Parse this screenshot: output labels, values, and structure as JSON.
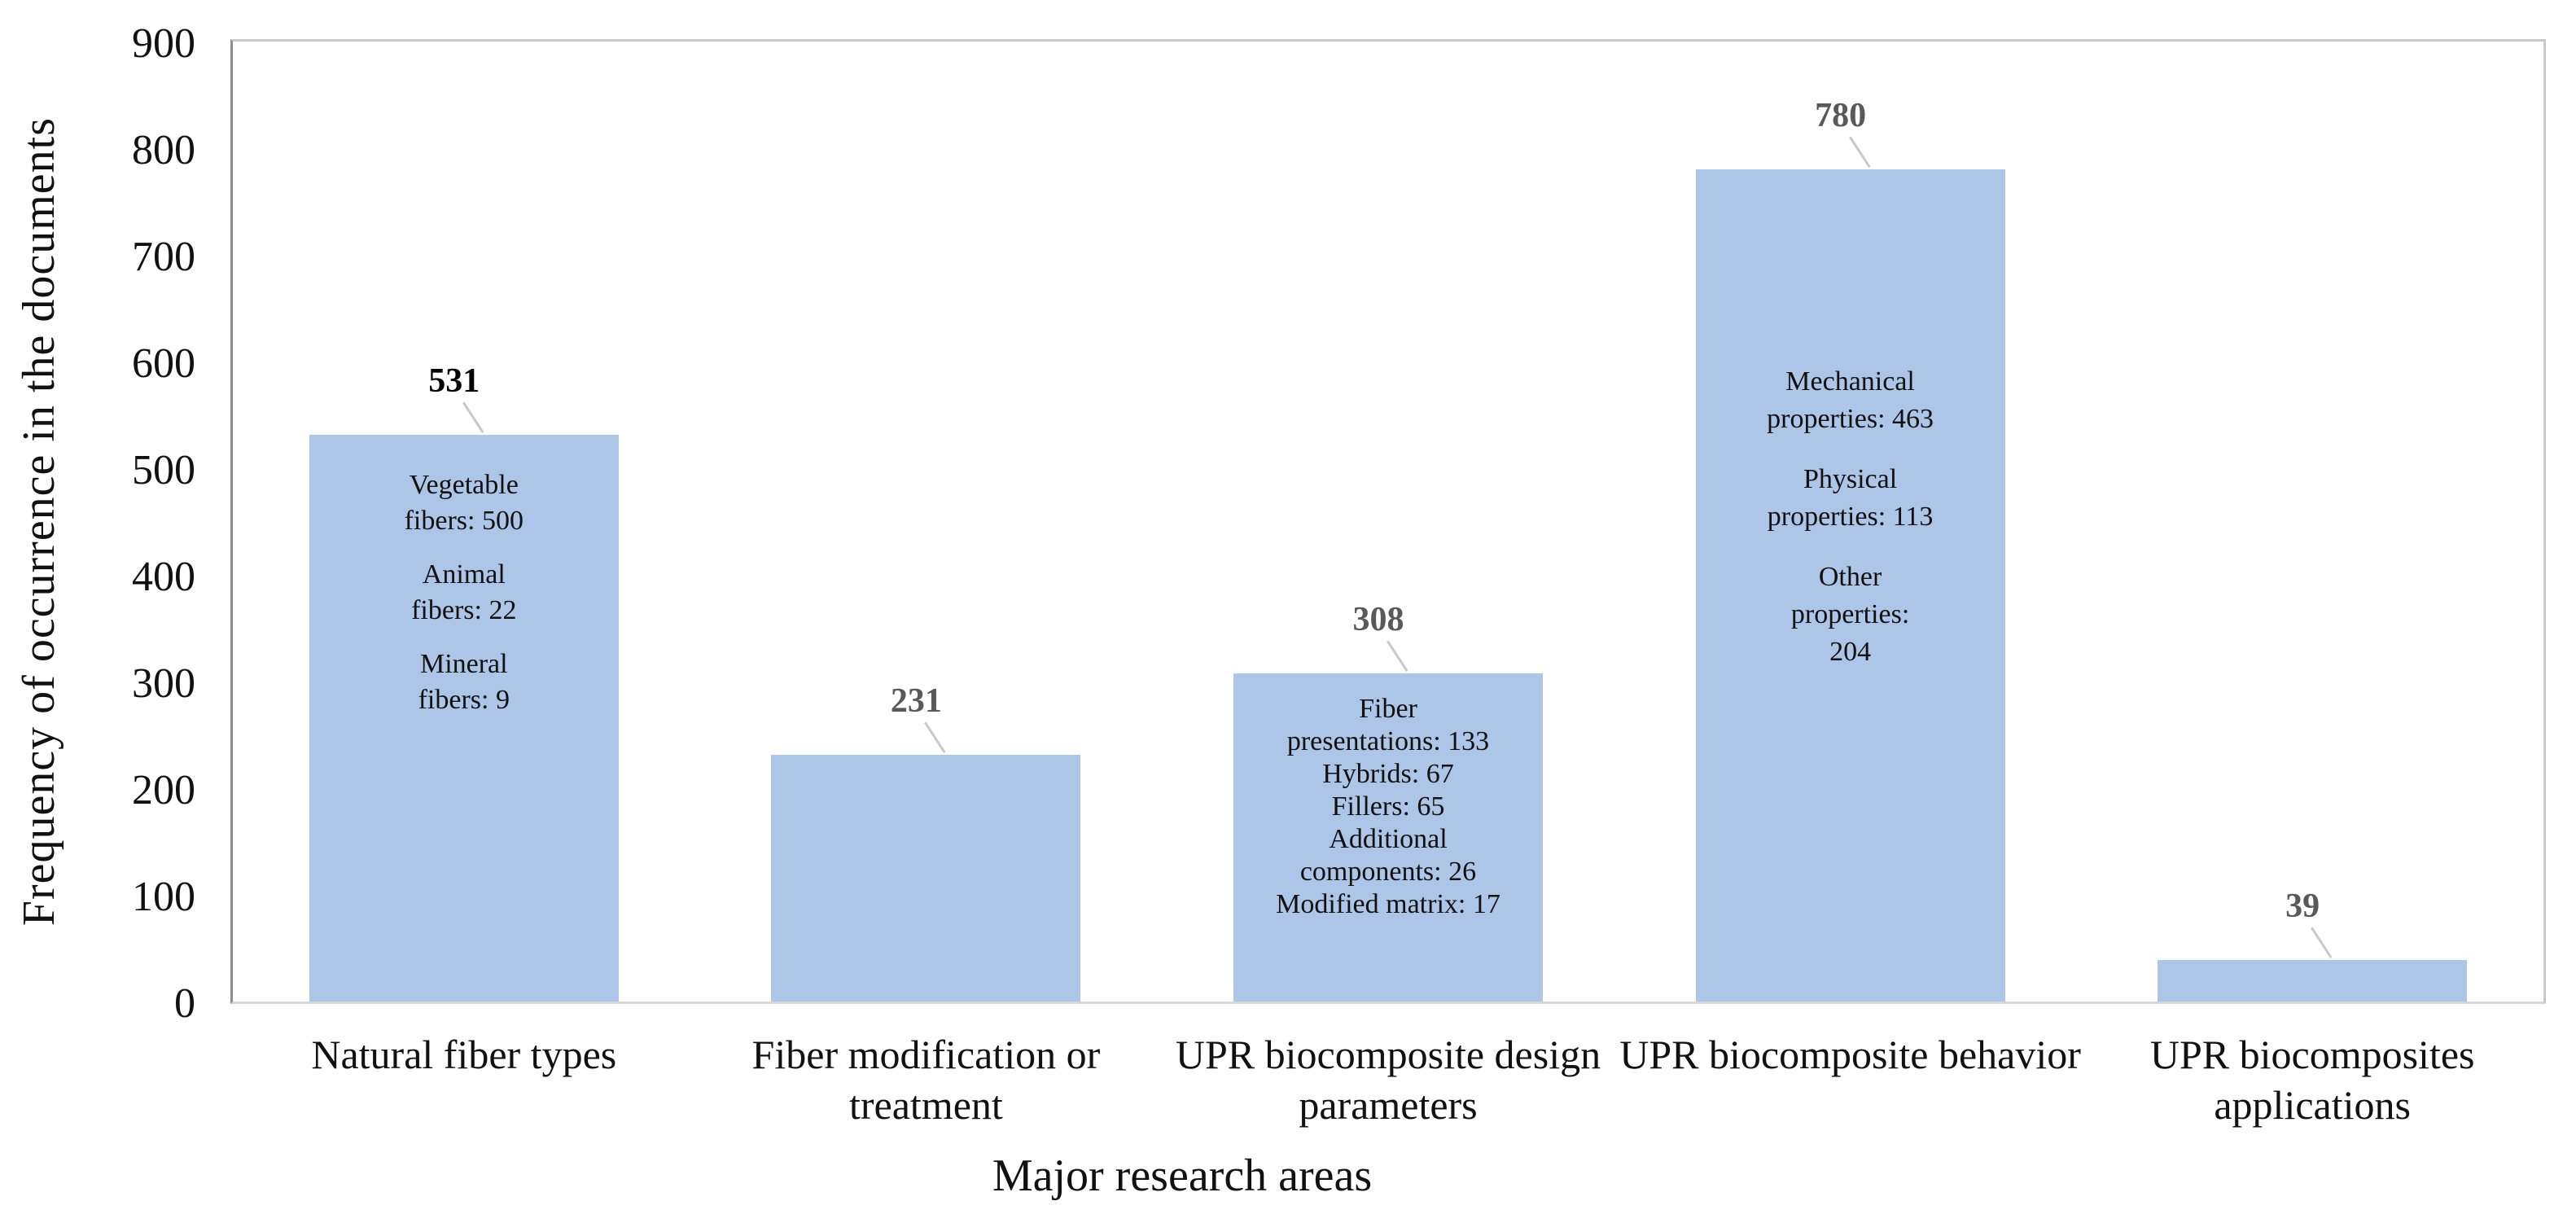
{
  "chart_data": {
    "type": "bar",
    "title": "",
    "xlabel": "Major research areas",
    "ylabel": "Frequency of occurrence in the documents",
    "ylim": [
      0,
      900
    ],
    "ytick_step": 100,
    "yticks": [
      0,
      100,
      200,
      300,
      400,
      500,
      600,
      700,
      800,
      900
    ],
    "grid": false,
    "legend": null,
    "bar_color": "#adc5e7",
    "categories": [
      "Natural fiber types",
      "Fiber modification or treatment",
      "UPR biocomposite design parameters",
      "UPR biocomposite behavior",
      "UPR biocomposites applications"
    ],
    "values": [
      531,
      231,
      308,
      780,
      39
    ],
    "value_labels": [
      "531",
      "231",
      "308",
      "780",
      "39"
    ],
    "value_label_colors": [
      "#000000",
      "#595959",
      "#595959",
      "#595959",
      "#595959"
    ],
    "category_label_lines": [
      [
        "Natural fiber types"
      ],
      [
        "Fiber modification or",
        "treatment"
      ],
      [
        "UPR biocomposite design",
        "parameters"
      ],
      [
        "UPR biocomposite behavior"
      ],
      [
        "UPR biocomposites",
        "applications"
      ]
    ],
    "bar_annotations": [
      {
        "paragraphs": [
          [
            "Vegetable",
            "fibers: 500"
          ],
          [
            "Animal",
            "fibers: 22"
          ],
          [
            "Mineral",
            "fibers: 9"
          ]
        ]
      },
      {
        "paragraphs": []
      },
      {
        "paragraphs": [
          [
            "Fiber",
            "presentations: 133",
            "Hybrids: 67",
            "Fillers: 65",
            "Additional",
            "components: 26",
            "Modified matrix: 17"
          ]
        ]
      },
      {
        "paragraphs": [
          [
            "Mechanical",
            "properties: 463"
          ],
          [
            "Physical",
            "properties: 113"
          ],
          [
            "Other",
            "properties:",
            "204"
          ]
        ]
      },
      {
        "paragraphs": []
      }
    ],
    "sub_values": {
      "Natural fiber types": {
        "Vegetable fibers": 500,
        "Animal fibers": 22,
        "Mineral fibers": 9
      },
      "UPR biocomposite design parameters": {
        "Fiber presentations": 133,
        "Hybrids": 67,
        "Fillers": 65,
        "Additional components": 26,
        "Modified matrix": 17
      },
      "UPR biocomposite behavior": {
        "Mechanical properties": 463,
        "Physical properties": 113,
        "Other properties": 204
      }
    }
  },
  "colors": {
    "bar_fill": "#adc5e7",
    "axis_line": "#8c8c8c",
    "plot_border": "#c9c9c9",
    "leader_line": "#c9c9c9",
    "text": "#111111",
    "value_label_gray": "#595959",
    "background": "#ffffff"
  }
}
